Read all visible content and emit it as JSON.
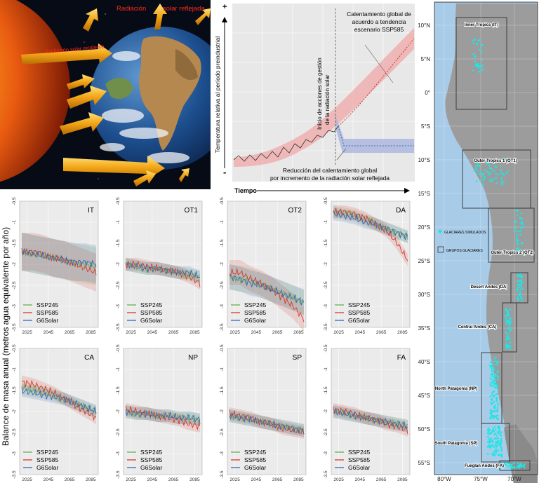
{
  "illustration": {
    "reflected_label_a": "Radiación",
    "reflected_label_b": "solar reflejada",
    "incident_label": "Radiación solar incidente"
  },
  "concept": {
    "y_label": "Temperatura relativa al período preindustrial",
    "x_label": "Tiempo",
    "plus": "+",
    "minus": "-",
    "ssp585_annot": [
      "Calentamiento global de",
      "acuerdo a tendencia",
      "escenario SSP585"
    ],
    "management_annot": [
      "Inicio de acciones de gestión",
      "de la radiación solar"
    ],
    "reduction_annot": [
      "Reducción del calentamiento global",
      "por incremento de la radiación solar reflejada"
    ]
  },
  "panels_axis_label": "Balance de masa anual (metros agua equivalente por año)",
  "legend": [
    {
      "name": "SSP245",
      "color": "#6ab04c"
    },
    {
      "name": "SSP585",
      "color": "#d63a2a"
    },
    {
      "name": "G6Solar",
      "color": "#3a64b8"
    }
  ],
  "chart_data": [
    {
      "type": "line",
      "title": "IT",
      "x_ticks": [
        "2025",
        "2045",
        "2065",
        "2085"
      ],
      "y_ticks": [
        "-0.5",
        "-1",
        "-1.5",
        "-2",
        "-2.5",
        "-3",
        "-3.5"
      ],
      "ylim": [
        -3.5,
        -0.5
      ],
      "x": [
        2020,
        2030,
        2040,
        2050,
        2060,
        2070,
        2080,
        2090
      ],
      "series": [
        {
          "name": "SSP245",
          "values": [
            -1.7,
            -1.75,
            -1.8,
            -1.85,
            -1.9,
            -1.95,
            -2.0,
            -2.05
          ]
        },
        {
          "name": "SSP585",
          "values": [
            -1.7,
            -1.7,
            -1.75,
            -1.85,
            -1.9,
            -2.0,
            -2.1,
            -2.2
          ]
        },
        {
          "name": "G6Solar",
          "values": [
            -1.7,
            -1.75,
            -1.8,
            -1.85,
            -1.9,
            -1.95,
            -1.95,
            -2.0
          ]
        }
      ]
    },
    {
      "type": "line",
      "title": "OT1",
      "x_ticks": [
        "2025",
        "2045",
        "2065",
        "2085"
      ],
      "y_ticks": [
        "-0.5",
        "-1",
        "-1.5",
        "-2",
        "-2.5",
        "-3",
        "-3.5"
      ],
      "ylim": [
        -3.5,
        -0.5
      ],
      "x": [
        2020,
        2030,
        2040,
        2050,
        2060,
        2070,
        2080,
        2090
      ],
      "series": [
        {
          "name": "SSP245",
          "values": [
            -2.0,
            -2.05,
            -2.1,
            -2.1,
            -2.15,
            -2.2,
            -2.25,
            -2.3
          ]
        },
        {
          "name": "SSP585",
          "values": [
            -2.0,
            -2.0,
            -2.05,
            -2.1,
            -2.15,
            -2.2,
            -2.3,
            -2.45
          ]
        },
        {
          "name": "G6Solar",
          "values": [
            -2.0,
            -2.05,
            -2.1,
            -2.1,
            -2.15,
            -2.2,
            -2.2,
            -2.3
          ]
        }
      ]
    },
    {
      "type": "line",
      "title": "OT2",
      "x_ticks": [
        "2025",
        "2045",
        "2065",
        "2085"
      ],
      "y_ticks": [
        "-0.5",
        "-1",
        "-1.5",
        "-2",
        "-2.5",
        "-3",
        "-3.5"
      ],
      "ylim": [
        -3.5,
        -0.5
      ],
      "x": [
        2020,
        2030,
        2040,
        2050,
        2060,
        2070,
        2080,
        2090
      ],
      "series": [
        {
          "name": "SSP245",
          "values": [
            -2.3,
            -2.35,
            -2.4,
            -2.5,
            -2.6,
            -2.7,
            -2.8,
            -2.9
          ]
        },
        {
          "name": "SSP585",
          "values": [
            -2.2,
            -2.2,
            -2.35,
            -2.45,
            -2.6,
            -2.8,
            -3.0,
            -3.3
          ]
        },
        {
          "name": "G6Solar",
          "values": [
            -2.3,
            -2.35,
            -2.45,
            -2.5,
            -2.6,
            -2.7,
            -2.8,
            -2.9
          ]
        }
      ]
    },
    {
      "type": "line",
      "title": "DA",
      "x_ticks": [
        "2025",
        "2045",
        "2065",
        "2085"
      ],
      "y_ticks": [
        "-0.5",
        "-1",
        "-1.5",
        "-2",
        "-2.5",
        "-3",
        "-3.5"
      ],
      "ylim": [
        -3.5,
        -0.5
      ],
      "x": [
        2020,
        2030,
        2040,
        2050,
        2060,
        2070,
        2080,
        2090
      ],
      "series": [
        {
          "name": "SSP245",
          "values": [
            -0.75,
            -0.8,
            -0.85,
            -0.95,
            -1.05,
            -1.15,
            -1.25,
            -1.35
          ]
        },
        {
          "name": "SSP585",
          "values": [
            -0.75,
            -0.75,
            -0.8,
            -0.9,
            -1.05,
            -1.2,
            -1.5,
            -1.9
          ]
        },
        {
          "name": "G6Solar",
          "values": [
            -0.8,
            -0.85,
            -0.9,
            -1.0,
            -1.05,
            -1.15,
            -1.25,
            -1.35
          ]
        }
      ]
    },
    {
      "type": "line",
      "title": "CA",
      "x_ticks": [
        "2025",
        "2045",
        "2065",
        "2085"
      ],
      "y_ticks": [
        "-0.5",
        "-1",
        "-1.5",
        "-2",
        "-2.5",
        "-3",
        "-3.5"
      ],
      "ylim": [
        -3.5,
        -0.5
      ],
      "x": [
        2020,
        2030,
        2040,
        2050,
        2060,
        2070,
        2080,
        2090
      ],
      "series": [
        {
          "name": "SSP245",
          "values": [
            -1.45,
            -1.5,
            -1.55,
            -1.6,
            -1.7,
            -1.8,
            -1.9,
            -2.0
          ]
        },
        {
          "name": "SSP585",
          "values": [
            -1.3,
            -1.35,
            -1.45,
            -1.55,
            -1.7,
            -1.85,
            -2.0,
            -2.15
          ]
        },
        {
          "name": "G6Solar",
          "values": [
            -1.5,
            -1.55,
            -1.6,
            -1.65,
            -1.7,
            -1.8,
            -1.9,
            -2.0
          ]
        }
      ]
    },
    {
      "type": "line",
      "title": "NP",
      "x_ticks": [
        "2025",
        "2045",
        "2065",
        "2085"
      ],
      "y_ticks": [
        "-0.5",
        "-1",
        "-1.5",
        "-2",
        "-2.5",
        "-3",
        "-3.5"
      ],
      "ylim": [
        -3.5,
        -0.5
      ],
      "x": [
        2020,
        2030,
        2040,
        2050,
        2060,
        2070,
        2080,
        2090
      ],
      "series": [
        {
          "name": "SSP245",
          "values": [
            -2.0,
            -2.05,
            -2.05,
            -2.1,
            -2.1,
            -2.15,
            -2.15,
            -2.2
          ]
        },
        {
          "name": "SSP585",
          "values": [
            -1.95,
            -2.0,
            -2.05,
            -2.1,
            -2.15,
            -2.2,
            -2.3,
            -2.35
          ]
        },
        {
          "name": "G6Solar",
          "values": [
            -2.0,
            -2.05,
            -2.05,
            -2.1,
            -2.1,
            -2.15,
            -2.15,
            -2.2
          ]
        }
      ]
    },
    {
      "type": "line",
      "title": "SP",
      "x_ticks": [
        "2025",
        "2045",
        "2065",
        "2085"
      ],
      "y_ticks": [
        "-0.5",
        "-1",
        "-1.5",
        "-2",
        "-2.5",
        "-3",
        "-3.5"
      ],
      "ylim": [
        -3.5,
        -0.5
      ],
      "x": [
        2020,
        2030,
        2040,
        2050,
        2060,
        2070,
        2080,
        2090
      ],
      "series": [
        {
          "name": "SSP245",
          "values": [
            -2.1,
            -2.15,
            -2.2,
            -2.25,
            -2.3,
            -2.35,
            -2.4,
            -2.45
          ]
        },
        {
          "name": "SSP585",
          "values": [
            -2.05,
            -2.1,
            -2.15,
            -2.25,
            -2.3,
            -2.4,
            -2.45,
            -2.5
          ]
        },
        {
          "name": "G6Solar",
          "values": [
            -2.1,
            -2.15,
            -2.2,
            -2.25,
            -2.3,
            -2.35,
            -2.4,
            -2.45
          ]
        }
      ]
    },
    {
      "type": "line",
      "title": "FA",
      "x_ticks": [
        "2025",
        "2045",
        "2065",
        "2085"
      ],
      "y_ticks": [
        "-0.5",
        "-1",
        "-1.5",
        "-2",
        "-2.5",
        "-3",
        "-3.5"
      ],
      "ylim": [
        -3.5,
        -0.5
      ],
      "x": [
        2020,
        2030,
        2040,
        2050,
        2060,
        2070,
        2080,
        2090
      ],
      "series": [
        {
          "name": "SSP245",
          "values": [
            -2.0,
            -2.05,
            -2.1,
            -2.15,
            -2.2,
            -2.25,
            -2.3,
            -2.35
          ]
        },
        {
          "name": "SSP585",
          "values": [
            -1.95,
            -2.0,
            -2.05,
            -2.15,
            -2.2,
            -2.3,
            -2.35,
            -2.45
          ]
        },
        {
          "name": "G6Solar",
          "values": [
            -2.0,
            -2.05,
            -2.1,
            -2.15,
            -2.2,
            -2.25,
            -2.3,
            -2.35
          ]
        }
      ]
    }
  ],
  "map": {
    "lat_labels": [
      "10°N",
      "5°N",
      "0°",
      "5°S",
      "10°S",
      "15°S",
      "20°S",
      "25°S",
      "30°S",
      "35°S",
      "40°S",
      "45°S",
      "50°S",
      "55°S"
    ],
    "lon_labels": [
      "80°W",
      "75°W",
      "70°W"
    ],
    "legend_glaciers": "GLACIARES SIMULADOS",
    "legend_groups": "GRUPOS GLACIARES",
    "regions": [
      "Inner Tropics (IT)",
      "Outer Tropics 1 (OT1)",
      "Outer Tropics 2 (OT2)",
      "Desert Andes (DA)",
      "Central Andes (CA)",
      "North Patagonia (NP)",
      "South Patagonia (SP)",
      "Fueglan Andes (FA)"
    ],
    "colors": {
      "sea": "#a8cbe8",
      "land": "#9c9c9c",
      "glacier": "#1ee6e6"
    }
  }
}
